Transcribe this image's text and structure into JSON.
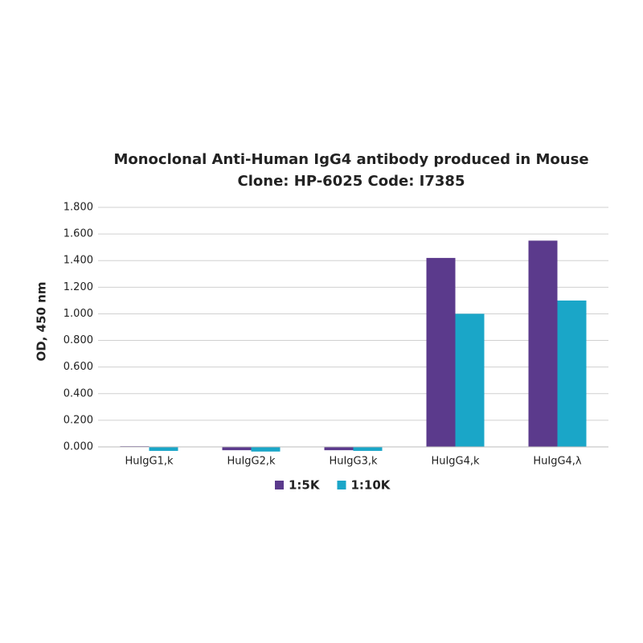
{
  "chart_data": {
    "type": "bar",
    "title": [
      "Monoclonal Anti-Human IgG4 antibody produced in Mouse",
      "Clone: HP-6025  Code: I7385"
    ],
    "y_label": "OD, 450 nm",
    "categories": [
      "HuIgG1,k",
      "HuIgG2,k",
      "HuIgG3,k",
      "HuIgG4,k",
      "HuIgG4,λ"
    ],
    "series": [
      {
        "name": "1:5K",
        "color": "#5b3a8c",
        "values": [
          0.005,
          -0.025,
          -0.025,
          1.42,
          1.55
        ]
      },
      {
        "name": "1:10K",
        "color": "#1aa6c8",
        "values": [
          -0.03,
          -0.035,
          -0.03,
          1.0,
          1.1
        ]
      }
    ],
    "ylim": [
      0,
      1.8
    ],
    "yticks": [
      {
        "value": 0,
        "label": "0.000"
      },
      {
        "value": 0.2,
        "label": "0.200"
      },
      {
        "value": 0.4,
        "label": "0.400"
      },
      {
        "value": 0.6,
        "label": "0.600"
      },
      {
        "value": 0.8,
        "label": "0.800"
      },
      {
        "value": 1.0,
        "label": "1.000"
      },
      {
        "value": 1.2,
        "label": "1.200"
      },
      {
        "value": 1.4,
        "label": "1.400"
      },
      {
        "value": 1.6,
        "label": "1.600"
      },
      {
        "value": 1.8,
        "label": "1.800"
      }
    ],
    "grid": true,
    "legend": "bottom"
  }
}
